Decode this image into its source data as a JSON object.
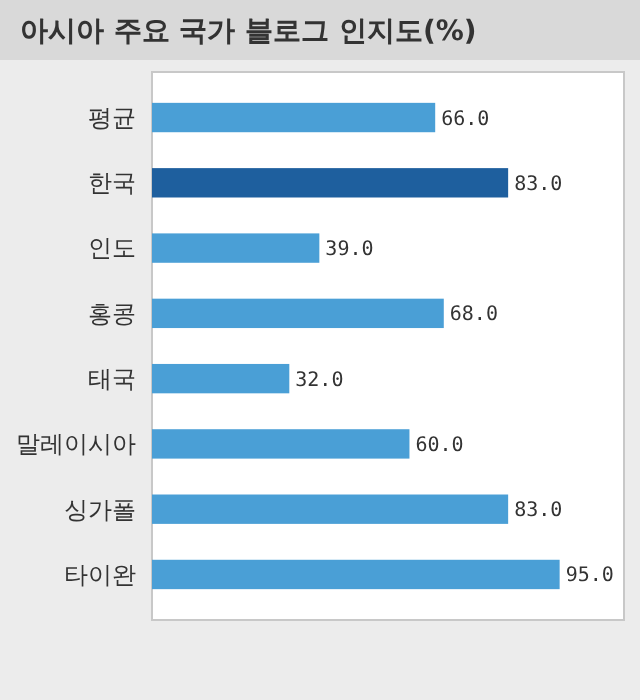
{
  "chart_data": {
    "type": "bar",
    "orientation": "horizontal",
    "title": "아시아 주요 국가 블로그 인지도(%)",
    "categories": [
      "평균",
      "한국",
      "인도",
      "홍콩",
      "태국",
      "말레이시아",
      "싱가폴",
      "타이완"
    ],
    "values": [
      66.0,
      83.0,
      39.0,
      68.0,
      32.0,
      60.0,
      83.0,
      95.0
    ],
    "value_labels": [
      "66.0",
      "83.0",
      "39.0",
      "68.0",
      "32.0",
      "60.0",
      "83.0",
      "95.0"
    ],
    "colors": [
      "#4a9fd6",
      "#1e5f9e",
      "#4a9fd6",
      "#4a9fd6",
      "#4a9fd6",
      "#4a9fd6",
      "#4a9fd6",
      "#4a9fd6"
    ],
    "xlim": [
      0,
      110
    ],
    "tick_labels": "y",
    "grid": false
  }
}
